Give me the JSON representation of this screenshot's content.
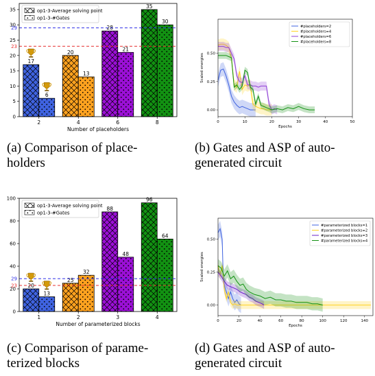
{
  "captions": {
    "a": [
      "(a) Comparison of place-",
      "holders"
    ],
    "b": [
      "(b) Gates and ASP of auto-",
      "generated circuit"
    ],
    "c": [
      "(c) Comparison of parame-",
      "terized blocks"
    ],
    "d": [
      "(d) Gates and ASP of auto-",
      "generated circuit"
    ]
  },
  "colors": {
    "blue": "#3f63e0",
    "orange": "#ffa21f",
    "purple": "#9b10d6",
    "green": "#129112",
    "ref_blue": "#2f2fe8",
    "ref_red": "#e83030",
    "trophy": "#d49a0a"
  },
  "chart_data": [
    {
      "id": "a",
      "type": "bar",
      "xlabel": "Number of placeholders",
      "ylabel": "",
      "categories": [
        "2",
        "4",
        "6",
        "8"
      ],
      "series": [
        {
          "name": "op1-3-Average solving point",
          "hatch": "cross",
          "values": [
            17,
            20,
            28,
            35
          ]
        },
        {
          "name": "op1-3-#Gates",
          "hatch": "dots",
          "values": [
            6,
            13,
            21,
            30
          ]
        }
      ],
      "bar_colors": [
        "#3f63e0",
        "#ffa21f",
        "#9b10d6",
        "#129112"
      ],
      "ylim": [
        0,
        37
      ],
      "yticks": [
        0,
        5,
        10,
        15,
        20,
        25,
        30,
        35
      ],
      "hlines": [
        {
          "value": 29,
          "label": "29",
          "color": "#2f2fe8"
        },
        {
          "value": 23,
          "label": "23",
          "color": "#e83030"
        }
      ],
      "trophies": [
        {
          "category": 0,
          "series": 0
        },
        {
          "category": 0,
          "series": 1
        }
      ],
      "legend": "top-left",
      "grid": false
    },
    {
      "id": "b",
      "type": "line",
      "xlabel": "Epochs",
      "ylabel": "Scaled energies",
      "xlim": [
        0,
        50
      ],
      "ylim": [
        -0.06,
        0.8
      ],
      "xticks": [
        0,
        10,
        20,
        30,
        40,
        50
      ],
      "yticks": [
        0.0,
        0.25,
        0.5
      ],
      "ytick_labels": [
        "0.00",
        "0.25",
        "0.50"
      ],
      "legend": "top-right",
      "series": [
        {
          "name": "#placeholders=2",
          "color": "#3f63e0",
          "x": [
            0,
            1,
            2,
            3,
            4,
            5,
            6,
            7,
            8,
            9,
            10,
            11,
            12,
            13,
            14
          ],
          "y": [
            0.26,
            0.35,
            0.36,
            0.3,
            0.22,
            0.12,
            0.07,
            0.04,
            0.02,
            0.03,
            0.02,
            0.01,
            0.0,
            0.0,
            0.0
          ],
          "band": 0.06
        },
        {
          "name": "#placeholders=4",
          "color": "#ffd21f",
          "x": [
            0,
            1,
            2,
            3,
            4,
            5,
            6,
            7,
            8,
            9,
            10,
            11,
            12,
            13,
            14,
            15,
            16,
            17,
            18,
            19,
            20
          ],
          "y": [
            0.57,
            0.58,
            0.58,
            0.57,
            0.55,
            0.46,
            0.22,
            0.2,
            0.34,
            0.18,
            0.22,
            0.21,
            0.22,
            0.05,
            0.03,
            0.02,
            0.01,
            0.01,
            0.0,
            0.0,
            0.0
          ],
          "band": 0.05
        },
        {
          "name": "#placeholders=6",
          "color": "#8f3fd6",
          "x": [
            0,
            1,
            2,
            3,
            4,
            5,
            6,
            7,
            8,
            9,
            10,
            11,
            12,
            13,
            14,
            15,
            16,
            17,
            18,
            19,
            20,
            21,
            22
          ],
          "y": [
            0.56,
            0.56,
            0.56,
            0.55,
            0.55,
            0.5,
            0.45,
            0.3,
            0.25,
            0.24,
            0.3,
            0.22,
            0.22,
            0.21,
            0.21,
            0.2,
            0.21,
            0.21,
            0.21,
            0.05,
            0.0,
            0.01,
            0.0
          ],
          "band": 0.04
        },
        {
          "name": "#placeholders=8",
          "color": "#129112",
          "x": [
            0,
            1,
            2,
            3,
            4,
            5,
            6,
            7,
            8,
            9,
            10,
            11,
            12,
            13,
            14,
            15,
            16,
            17,
            18,
            19,
            20,
            22,
            24,
            26,
            28,
            30,
            32,
            34,
            36
          ],
          "y": [
            0.48,
            0.48,
            0.48,
            0.48,
            0.47,
            0.46,
            0.2,
            0.22,
            0.18,
            0.21,
            0.35,
            0.33,
            0.2,
            0.18,
            0.05,
            0.12,
            0.04,
            0.03,
            0.02,
            0.01,
            0.0,
            0.01,
            0.0,
            0.02,
            0.01,
            0.03,
            0.01,
            0.0,
            0.0
          ],
          "band": 0.03
        }
      ]
    },
    {
      "id": "c",
      "type": "bar",
      "xlabel": "Number of parameterized blocks",
      "ylabel": "",
      "categories": [
        "1",
        "2",
        "3",
        "4"
      ],
      "series": [
        {
          "name": "op1-3-Average solving point",
          "hatch": "cross",
          "values": [
            20,
            25,
            88,
            96
          ]
        },
        {
          "name": "op1-3-#Gates",
          "hatch": "dots",
          "values": [
            13,
            32,
            48,
            64
          ]
        }
      ],
      "bar_colors": [
        "#3f63e0",
        "#ffa21f",
        "#9b10d6",
        "#129112"
      ],
      "ylim": [
        0,
        100
      ],
      "yticks": [
        0,
        20,
        40,
        60,
        80,
        100
      ],
      "hlines": [
        {
          "value": 29,
          "label": "29",
          "color": "#2f2fe8"
        },
        {
          "value": 23,
          "label": "23",
          "color": "#e83030"
        }
      ],
      "trophies": [
        {
          "category": 0,
          "series": 0
        },
        {
          "category": 0,
          "series": 1
        }
      ],
      "legend": "top-left",
      "grid": false
    },
    {
      "id": "d",
      "type": "line",
      "xlabel": "Epochs",
      "ylabel": "Scaled energies",
      "xlim": [
        0,
        148
      ],
      "ylim": [
        -0.08,
        0.66
      ],
      "xticks": [
        0,
        20,
        40,
        60,
        80,
        100,
        120,
        140
      ],
      "yticks": [
        0.0,
        0.25,
        0.5
      ],
      "ytick_labels": [
        "0.00",
        "0.25",
        "0.50"
      ],
      "legend": "top-right",
      "series": [
        {
          "name": "#parameterized blocks=1",
          "color": "#3f63e0",
          "x": [
            0,
            2,
            4,
            5,
            6,
            8,
            10,
            12,
            14,
            16,
            18,
            20,
            22
          ],
          "y": [
            0.55,
            0.58,
            0.5,
            0.2,
            0.15,
            0.1,
            0.05,
            0.1,
            0.05,
            0.02,
            0.04,
            0.01,
            0.0
          ],
          "band": 0.06
        },
        {
          "name": "#parameterized blocks=2",
          "color": "#ffd21f",
          "x": [
            0,
            2,
            4,
            6,
            8,
            10,
            12,
            14,
            16,
            18,
            20,
            25,
            30,
            40,
            60,
            80,
            100,
            120,
            140,
            146
          ],
          "y": [
            0.3,
            0.22,
            0.3,
            0.12,
            0.05,
            0.1,
            0.02,
            0.0,
            0.01,
            0.0,
            0.0,
            0.0,
            0.0,
            0.0,
            0.0,
            0.0,
            0.0,
            0.0,
            0.0,
            0.0
          ],
          "band": 0.03
        },
        {
          "name": "#parameterized blocks=3",
          "color": "#6a1fc8",
          "x": [
            0,
            3,
            6,
            9,
            12,
            15,
            18,
            21,
            24,
            27,
            30,
            33,
            36,
            39,
            42,
            44
          ],
          "y": [
            0.25,
            0.22,
            0.18,
            0.15,
            0.14,
            0.13,
            0.12,
            0.1,
            0.09,
            0.08,
            0.06,
            0.05,
            0.03,
            0.02,
            0.01,
            0.0
          ],
          "band": 0.03
        },
        {
          "name": "#parameterized blocks=4",
          "color": "#129112",
          "x": [
            0,
            3,
            6,
            9,
            12,
            15,
            18,
            21,
            24,
            27,
            30,
            35,
            40,
            45,
            50,
            55,
            60,
            65,
            70,
            75,
            80,
            85,
            90,
            95,
            100
          ],
          "y": [
            0.3,
            0.28,
            0.22,
            0.26,
            0.2,
            0.22,
            0.18,
            0.15,
            0.16,
            0.12,
            0.1,
            0.08,
            0.07,
            0.05,
            0.06,
            0.04,
            0.04,
            0.03,
            0.03,
            0.02,
            0.02,
            0.02,
            0.01,
            0.01,
            0.0
          ],
          "band": 0.05
        }
      ]
    }
  ]
}
